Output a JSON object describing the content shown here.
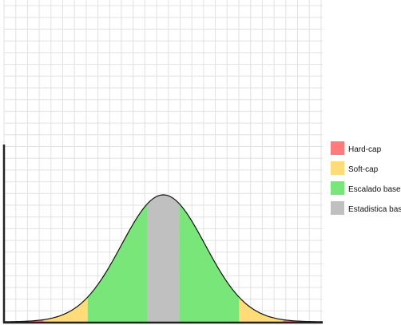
{
  "chart_data": {
    "type": "area",
    "title": "",
    "xlabel": "",
    "ylabel": "",
    "grid": true,
    "legend_position": "right",
    "curve": "bell",
    "xlim": [
      -4,
      4
    ],
    "ylim": [
      0,
      1
    ],
    "series": [
      {
        "name": "Hard-cap",
        "color": "#ff7c7c",
        "x_ranges": [
          [
            -3.6,
            -3.0
          ],
          [
            3.0,
            3.6
          ]
        ]
      },
      {
        "name": "Soft-cap",
        "color": "#ffdc78",
        "x_ranges": [
          [
            -3.0,
            -1.9
          ],
          [
            1.9,
            3.0
          ]
        ]
      },
      {
        "name": "Escalado base",
        "color": "#78e678",
        "x_ranges": [
          [
            -1.9,
            -0.4
          ],
          [
            0.4,
            1.9
          ]
        ]
      },
      {
        "name": "Estadistica base",
        "color": "#c0c0c0",
        "x_ranges": [
          [
            -0.4,
            0.4
          ]
        ]
      }
    ],
    "legend": [
      {
        "label": "Hard-cap",
        "color": "#ff7c7c"
      },
      {
        "label": "Soft-cap",
        "color": "#ffdc78"
      },
      {
        "label": "Escalado base",
        "color": "#78e678"
      },
      {
        "label": "Estadistica base",
        "color": "#c0c0c0"
      }
    ]
  }
}
